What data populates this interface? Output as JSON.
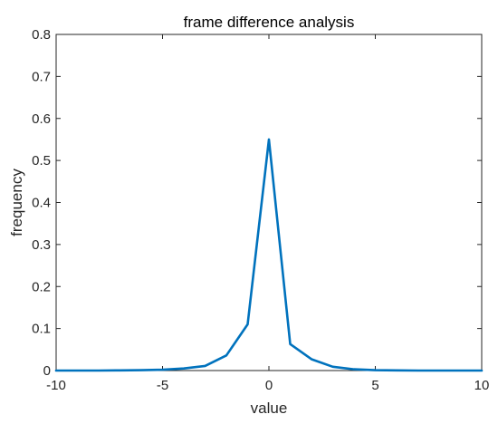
{
  "chart_data": {
    "type": "line",
    "title": "frame difference analysis",
    "xlabel": "value",
    "ylabel": "frequency",
    "xlim": [
      -10,
      10
    ],
    "ylim": [
      0,
      0.8
    ],
    "x_ticks": [
      -10,
      -5,
      0,
      5,
      10
    ],
    "y_ticks": [
      0,
      0.1,
      0.2,
      0.3,
      0.4,
      0.5,
      0.6,
      0.7,
      0.8
    ],
    "x_tick_labels": [
      "-10",
      "-5",
      "0",
      "5",
      "10"
    ],
    "y_tick_labels": [
      "0",
      "0.1",
      "0.2",
      "0.3",
      "0.4",
      "0.5",
      "0.6",
      "0.7",
      "0.8"
    ],
    "grid": false,
    "box": true,
    "series": [
      {
        "color": "#0072BD",
        "x": [
          -10,
          -9,
          -8,
          -7,
          -6,
          -5,
          -4,
          -3,
          -2,
          -1,
          0,
          1,
          2,
          3,
          4,
          5,
          6,
          7,
          8,
          9,
          10
        ],
        "y": [
          0.0,
          0.0,
          0.0,
          0.0005,
          0.001,
          0.002,
          0.005,
          0.011,
          0.036,
          0.11,
          0.55,
          0.063,
          0.027,
          0.009,
          0.003,
          0.001,
          0.0005,
          0.0,
          0.0,
          0.0,
          0.0
        ]
      }
    ]
  }
}
